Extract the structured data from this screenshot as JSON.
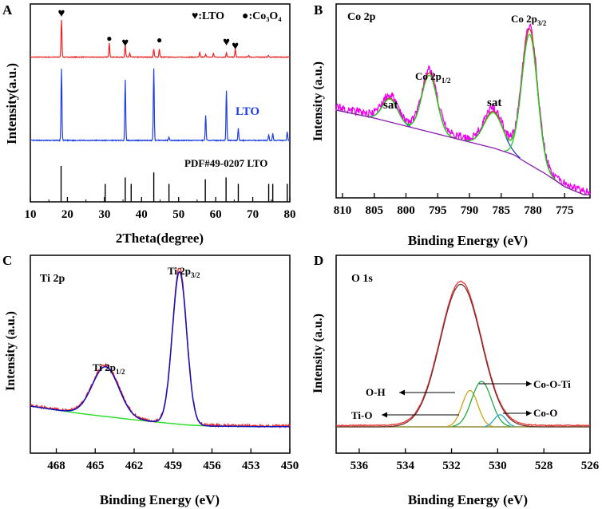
{
  "chart_data": [
    {
      "panel": "A",
      "type": "line",
      "title": "",
      "xlabel": "2Theta(degree)",
      "ylabel": "Intensity(a.u.)",
      "xlim": [
        10,
        80
      ],
      "xticks": [
        "10",
        "20",
        "30",
        "40",
        "50",
        "60",
        "70",
        "80"
      ],
      "legend": {
        "lto_label": "♥:LTO",
        "co3o4_label": "●:Co₃O₄"
      },
      "annotations": {
        "lto_curve": "LTO",
        "reference": "PDF#49-0207 LTO"
      },
      "colors": {
        "composite": "#ee2222",
        "lto": "#1f3fe6",
        "reference": "#000000"
      },
      "series": [
        {
          "name": "LTO/Co3O4 composite",
          "baseline": 0.05,
          "peaks": [
            {
              "x": 18.4,
              "h": 1.0
            },
            {
              "x": 31.3,
              "h": 0.38
            },
            {
              "x": 35.6,
              "h": 0.32
            },
            {
              "x": 36.8,
              "h": 0.1
            },
            {
              "x": 43.3,
              "h": 0.22
            },
            {
              "x": 44.8,
              "h": 0.22
            },
            {
              "x": 55.7,
              "h": 0.12
            },
            {
              "x": 57.3,
              "h": 0.08
            },
            {
              "x": 59.4,
              "h": 0.1
            },
            {
              "x": 62.9,
              "h": 0.12
            },
            {
              "x": 65.3,
              "h": 0.22
            },
            {
              "x": 68.9,
              "h": 0.05
            },
            {
              "x": 74.2,
              "h": 0.05
            }
          ]
        },
        {
          "name": "LTO",
          "baseline": 0.0,
          "peaks": [
            {
              "x": 18.4,
              "h": 1.0
            },
            {
              "x": 35.6,
              "h": 0.84
            },
            {
              "x": 43.3,
              "h": 1.0
            },
            {
              "x": 47.4,
              "h": 0.05
            },
            {
              "x": 57.3,
              "h": 0.35
            },
            {
              "x": 62.9,
              "h": 0.69
            },
            {
              "x": 66.1,
              "h": 0.17
            },
            {
              "x": 74.3,
              "h": 0.08
            },
            {
              "x": 75.4,
              "h": 0.1
            },
            {
              "x": 79.3,
              "h": 0.12
            }
          ]
        },
        {
          "name": "PDF#49-0207 LTO",
          "sticks": [
            {
              "x": 18.3,
              "h": 1.0
            },
            {
              "x": 30.2,
              "h": 0.5
            },
            {
              "x": 35.6,
              "h": 0.68
            },
            {
              "x": 37.2,
              "h": 0.5
            },
            {
              "x": 43.3,
              "h": 0.82
            },
            {
              "x": 47.4,
              "h": 0.5
            },
            {
              "x": 57.2,
              "h": 0.63
            },
            {
              "x": 62.8,
              "h": 0.68
            },
            {
              "x": 66.1,
              "h": 0.5
            },
            {
              "x": 74.3,
              "h": 0.5
            },
            {
              "x": 75.4,
              "h": 0.5
            },
            {
              "x": 79.3,
              "h": 0.5
            }
          ]
        }
      ],
      "markers": [
        {
          "symbol": "♥",
          "x": 18.4
        },
        {
          "symbol": "●",
          "x": 31.3
        },
        {
          "symbol": "♥",
          "x": 35.6
        },
        {
          "symbol": "●",
          "x": 44.8
        },
        {
          "symbol": "♥",
          "x": 62.9
        },
        {
          "symbol": "♥",
          "x": 65.3
        }
      ]
    },
    {
      "panel": "B",
      "type": "line",
      "title": "Co 2p",
      "xlabel": "Binding Energy (eV)",
      "ylabel": "Intensity (a.u.)",
      "xlim": [
        811,
        771
      ],
      "ylim": [
        0,
        1
      ],
      "xticks": [
        "810",
        "805",
        "800",
        "795",
        "790",
        "785",
        "780",
        "775"
      ],
      "labels": {
        "sat1": "sat",
        "p12": "Co 2p",
        "p12_sub": "1/2",
        "sat2": "sat",
        "p32": "Co 2p",
        "p32_sub": "3/2"
      },
      "colors": {
        "raw": "#ee00ee",
        "envelope": "#ee2222",
        "fit": "#22cc22",
        "peak": "#2040c0",
        "background": "#8a1cb0"
      },
      "background": [
        [
          811,
          0.5
        ],
        [
          805,
          0.45
        ],
        [
          800,
          0.4
        ],
        [
          795,
          0.35
        ],
        [
          790,
          0.3
        ],
        [
          786,
          0.26
        ],
        [
          783,
          0.22
        ],
        [
          781,
          0.17
        ],
        [
          778,
          0.1
        ],
        [
          775,
          0.02
        ],
        [
          772,
          -0.03
        ]
      ],
      "peaks": [
        {
          "name": "sat",
          "center": 802.5,
          "fwhm": 2.8,
          "height": 0.15
        },
        {
          "name": "Co 2p1/2",
          "center": 796.3,
          "fwhm": 2.8,
          "height": 0.37
        },
        {
          "name": "sat",
          "center": 786.2,
          "fwhm": 3.5,
          "height": 0.23
        },
        {
          "name": "Co 2p3/2",
          "center": 780.5,
          "fwhm": 2.9,
          "height": 0.85
        }
      ],
      "noise": 0.025
    },
    {
      "panel": "C",
      "type": "line",
      "title": "Ti 2p",
      "xlabel": "Binding Energy (eV)",
      "ylabel": "Intensity (a.u.)",
      "xlim": [
        470,
        450
      ],
      "ylim": [
        0,
        1
      ],
      "xticks": [
        "468",
        "465",
        "462",
        "459",
        "456",
        "453",
        "450"
      ],
      "labels": {
        "p12": "Ti 2p",
        "p12_sub": "1/2",
        "p32": "Ti 2p",
        "p32_sub": "3/2"
      },
      "colors": {
        "raw": "#ee2222",
        "fit": "#1010c0",
        "background": "#22dd22"
      },
      "background": [
        [
          470,
          0.135
        ],
        [
          466,
          0.09
        ],
        [
          462,
          0.055
        ],
        [
          460,
          0.04
        ],
        [
          458,
          0.025
        ],
        [
          456,
          0.018
        ],
        [
          452,
          0.015
        ],
        [
          450,
          0.015
        ]
      ],
      "peaks": [
        {
          "name": "Ti 2p1/2",
          "center": 464.2,
          "fwhm": 2.4,
          "height": 0.29
        },
        {
          "name": "Ti 2p3/2",
          "center": 458.5,
          "fwhm": 1.3,
          "height": 0.89
        }
      ],
      "noise": 0.008
    },
    {
      "panel": "D",
      "type": "line",
      "title": "O 1s",
      "xlabel": "Binding Energy (eV)",
      "ylabel": "Intensity (a.u.)",
      "xlim": [
        537,
        526
      ],
      "ylim": [
        0,
        1
      ],
      "xticks": [
        "536",
        "534",
        "532",
        "530",
        "528",
        "526"
      ],
      "labels": {
        "oh": "O-H",
        "tio": "Ti-O",
        "coo_ti": "Co-O-Ti",
        "coo": "Co-O"
      },
      "colors": {
        "raw": "#ee3333",
        "envelope": "#6b2a2a",
        "oh": "#d4a017",
        "coo_ti": "#22aa44",
        "coo": "#2aa6c8",
        "background": "#8a8a2a"
      },
      "baseline": 0.005,
      "peaks": [
        {
          "name": "O-H",
          "center": 531.6,
          "fwhm": 2.1,
          "height": 0.94
        },
        {
          "name": "Ti-O",
          "center": 531.2,
          "fwhm": 0.8,
          "height": 0.24
        },
        {
          "name": "Co-O-Ti",
          "center": 530.7,
          "fwhm": 1.0,
          "height": 0.3
        },
        {
          "name": "Co-O",
          "center": 529.9,
          "fwhm": 0.6,
          "height": 0.08
        }
      ]
    }
  ],
  "panel_letters": [
    "A",
    "B",
    "C",
    "D"
  ]
}
